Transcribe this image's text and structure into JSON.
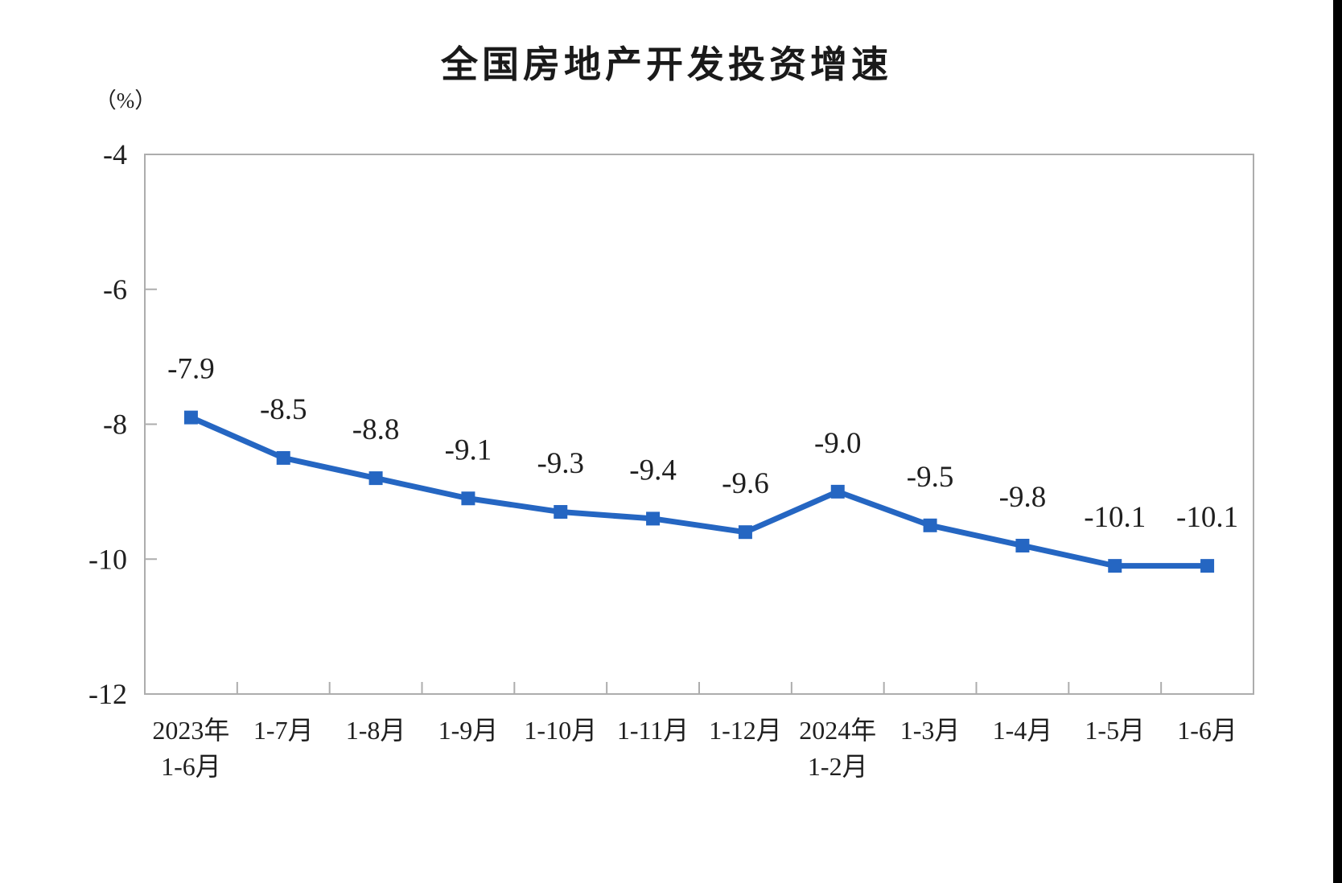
{
  "page": {
    "background_color": "#ffffff",
    "right_edge_bar_color": "#000000"
  },
  "chart_data": {
    "type": "line",
    "title": "全国房地产开发投资增速",
    "unit_label": "（%）",
    "categories": [
      [
        "2023年",
        "1-6月"
      ],
      [
        "1-7月"
      ],
      [
        "1-8月"
      ],
      [
        "1-9月"
      ],
      [
        "1-10月"
      ],
      [
        "1-11月"
      ],
      [
        "1-12月"
      ],
      [
        "2024年",
        "1-2月"
      ],
      [
        "1-3月"
      ],
      [
        "1-4月"
      ],
      [
        "1-5月"
      ],
      [
        "1-6月"
      ]
    ],
    "series": [
      {
        "name": "全国房地产开发投资增速",
        "values": [
          -7.9,
          -8.5,
          -8.8,
          -9.1,
          -9.3,
          -9.4,
          -9.6,
          -9.0,
          -9.5,
          -9.8,
          -10.1,
          -10.1
        ],
        "point_labels": [
          "-7.9",
          "-8.5",
          "-8.8",
          "-9.1",
          "-9.3",
          "-9.4",
          "-9.6",
          "-9.0",
          "-9.5",
          "-9.8",
          "-10.1",
          "-10.1"
        ]
      }
    ],
    "xlabel": "",
    "ylabel": "（%）",
    "ylim": [
      -12,
      -4
    ],
    "y_ticks": [
      -4,
      -6,
      -8,
      -10,
      -12
    ],
    "y_tick_labels": [
      "-4",
      "-6",
      "-8",
      "-10",
      "-12"
    ],
    "grid": false,
    "legend": "none",
    "marker": "square",
    "colors": {
      "line": "#2566c2",
      "marker": "#2566c2",
      "frame": "#adadad",
      "tick": "#adadad",
      "label_text": "#1f1f1f",
      "title_text": "#1a1a1a"
    }
  }
}
